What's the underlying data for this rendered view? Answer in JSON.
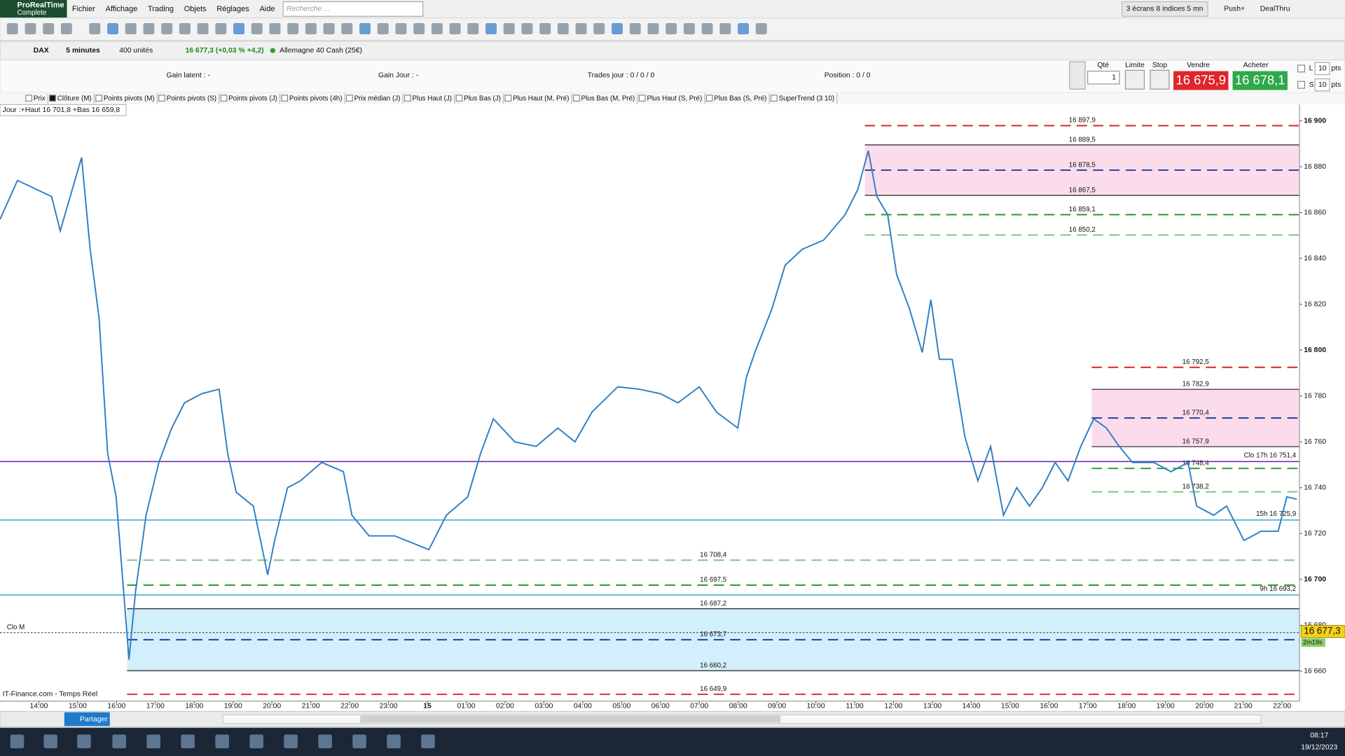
{
  "app": {
    "brand": "ProRealTime",
    "edition": "Complete",
    "menus": [
      "Fichier",
      "Affichage",
      "Trading",
      "Objets",
      "Réglages",
      "Aide"
    ],
    "search": "Recherche ...",
    "screens": "3 écrans 8 indices 5 mn",
    "push": "Push+",
    "dealthru": "DealThru"
  },
  "instrument": {
    "symbol": "DAX",
    "timeframe": "5 minutes",
    "units": "400 unités",
    "quote": "16 677,3 (+0,03 % +4,2)",
    "name": "Allemagne 40 Cash (25€)"
  },
  "trading_panel": {
    "gain_latent": "Gain latent : -",
    "gain_jour": "Gain Jour : -",
    "trades": "Trades jour : 0 / 0 / 0",
    "position": "Position : 0 / 0",
    "qty_label": "Qté",
    "qty": "1",
    "limit": "Limite",
    "stop": "Stop",
    "sell_label": "Vendre",
    "sell_price": "16 675,9",
    "buy_label": "Acheter",
    "buy_price": "16 678,1",
    "l_label": "L",
    "s_label": "S",
    "l_pts": "10",
    "s_pts": "10",
    "pts": "pts"
  },
  "indicators": [
    "Prix",
    "Clôture (M)",
    "Points pivots (M)",
    "Points pivots (S)",
    "Points pivots (J)",
    "Points pivots (4h)",
    "Prix médian (J)",
    "Plus Haut (J)",
    "Plus Bas (J)",
    "Plus Haut (M, Pré)",
    "Plus Bas (M, Pré)",
    "Plus Haut (S, Pré)",
    "Plus Bas (S, Pré)",
    "SuperTrend (3 10)"
  ],
  "day_info": "Jour :+Haut 16 701,8 +Bas 16 659,8",
  "chart_data": {
    "type": "line",
    "xlim": [
      -1,
      32.45
    ],
    "ylim": [
      16645,
      16905
    ],
    "xticks": [
      {
        "value": 0,
        "label": "14:00"
      },
      {
        "value": 1,
        "label": "15:00"
      },
      {
        "value": 2,
        "label": "16:00"
      },
      {
        "value": 3,
        "label": "17:00"
      },
      {
        "value": 4,
        "label": "18:00"
      },
      {
        "value": 5,
        "label": "19:00"
      },
      {
        "value": 6,
        "label": "20:00"
      },
      {
        "value": 7,
        "label": "21:00"
      },
      {
        "value": 8,
        "label": "22:00"
      },
      {
        "value": 9,
        "label": "23:00"
      },
      {
        "value": 10,
        "label": "15"
      },
      {
        "value": 11,
        "label": "01:00"
      },
      {
        "value": 12,
        "label": "02:00"
      },
      {
        "value": 13,
        "label": "03:00"
      },
      {
        "value": 14,
        "label": "04:00"
      },
      {
        "value": 15,
        "label": "05:00"
      },
      {
        "value": 16,
        "label": "06:00"
      },
      {
        "value": 17,
        "label": "07:00"
      },
      {
        "value": 18,
        "label": "08:00"
      },
      {
        "value": 19,
        "label": "09:00"
      },
      {
        "value": 20,
        "label": "10:00"
      },
      {
        "value": 21,
        "label": "11:00"
      },
      {
        "value": 22,
        "label": "12:00"
      },
      {
        "value": 23,
        "label": "13:00"
      },
      {
        "value": 24,
        "label": "14:00"
      },
      {
        "value": 25,
        "label": "15:00"
      },
      {
        "value": 26,
        "label": "16:00"
      },
      {
        "value": 27,
        "label": "17:00"
      },
      {
        "value": 28,
        "label": "18:00"
      },
      {
        "value": 29,
        "label": "19:00"
      },
      {
        "value": 30,
        "label": "20:00"
      },
      {
        "value": 31,
        "label": "21:00"
      },
      {
        "value": 32,
        "label": "22:00"
      }
    ],
    "yticks": [
      {
        "value": 16660,
        "label": "16 660"
      },
      {
        "value": 16680,
        "label": "16 680"
      },
      {
        "value": 16700,
        "label": "16 700"
      },
      {
        "value": 16720,
        "label": "16 720"
      },
      {
        "value": 16740,
        "label": "16 740"
      },
      {
        "value": 16760,
        "label": "16 760"
      },
      {
        "value": 16780,
        "label": "16 780"
      },
      {
        "value": 16800,
        "label": "16 800"
      },
      {
        "value": 16820,
        "label": "16 820"
      },
      {
        "value": 16840,
        "label": "16 840"
      },
      {
        "value": 16860,
        "label": "16 860"
      },
      {
        "value": 16880,
        "label": "16 880"
      },
      {
        "value": 16900,
        "label": "16 900"
      }
    ],
    "series": [
      {
        "name": "DAX",
        "color": "#2f7fc4",
        "x": [
          -1,
          -0.55,
          0.33,
          0.55,
          1.1,
          1.32,
          1.55,
          1.77,
          1.99,
          2.32,
          2.49,
          2.76,
          3.09,
          3.42,
          3.75,
          4.19,
          4.64,
          4.86,
          5.08,
          5.52,
          5.89,
          6.07,
          6.4,
          6.73,
          7.28,
          7.84,
          8.06,
          8.5,
          9.16,
          10.04,
          10.49,
          11.04,
          11.37,
          11.7,
          12.25,
          12.8,
          13.36,
          13.8,
          14.24,
          14.9,
          15.45,
          16,
          16.45,
          17,
          17.44,
          17.99,
          18.21,
          18.43,
          18.87,
          19.21,
          19.65,
          20.2,
          20.75,
          21.08,
          21.35,
          21.57,
          21.85,
          22.08,
          22.41,
          22.74,
          22.96,
          23.18,
          23.51,
          23.84,
          24.17,
          24.5,
          24.83,
          25.17,
          25.5,
          25.83,
          26.16,
          26.49,
          26.82,
          27.15,
          27.48,
          27.81,
          28.15,
          28.7,
          29.14,
          29.58,
          29.8,
          30.24,
          30.57,
          31.02,
          31.46,
          31.9,
          32.12,
          32.38
        ],
        "values": [
          16857,
          16874,
          16867,
          16852,
          16884,
          16844,
          16814,
          16755,
          16736,
          16665,
          16695,
          16728,
          16751,
          16766,
          16777,
          16781,
          16783,
          16755,
          16738,
          16732,
          16702,
          16717,
          16740,
          16743,
          16751,
          16747,
          16728,
          16719,
          16719,
          16713,
          16728,
          16736,
          16755,
          16770,
          16760,
          16758,
          16766,
          16760,
          16773,
          16784,
          16783,
          16781,
          16777,
          16784,
          16773,
          16766,
          16788,
          16799,
          16818,
          16837,
          16844,
          16848,
          16859,
          16870,
          16887,
          16867,
          16859,
          16833,
          16818,
          16799,
          16822,
          16796,
          16796,
          16762,
          16743,
          16758,
          16728,
          16740,
          16732,
          16740,
          16751,
          16743,
          16758,
          16770,
          16766,
          16758,
          16751,
          16751,
          16747,
          16751,
          16732,
          16728,
          16732,
          16717,
          16721,
          16721,
          16736,
          16735
        ]
      }
    ],
    "level_groups": [
      {
        "start": 2.27,
        "zone_color": "#d3effb",
        "levels": [
          {
            "value": 16708.4,
            "label": "16 708,4",
            "color": "#7cc87f",
            "line": "dash"
          },
          {
            "value": 16697.5,
            "label": "16 697,5",
            "color": "#1e9e2a",
            "line": "dash"
          },
          {
            "value": 16687.2,
            "label": "16 687,2",
            "color": "#222222",
            "line": "solid"
          },
          {
            "value": 16673.7,
            "label": "16 673,7",
            "color": "#1f3fa0",
            "line": "dash"
          },
          {
            "value": 16660.2,
            "label": "16 660,2",
            "color": "#222222",
            "line": "solid"
          },
          {
            "value": 16649.9,
            "label": "16 649,9",
            "color": "#d9232a",
            "line": "dash"
          }
        ]
      },
      {
        "start": 21.26,
        "zone_color": "#fbdcec",
        "levels": [
          {
            "value": 16897.9,
            "label": "16 897,9",
            "color": "#d9232a",
            "line": "dash"
          },
          {
            "value": 16889.5,
            "label": "16 889,5",
            "color": "#222222",
            "line": "solid"
          },
          {
            "value": 16878.5,
            "label": "16 878,5",
            "color": "#1f3fa0",
            "line": "dash"
          },
          {
            "value": 16867.5,
            "label": "16 867,5",
            "color": "#222222",
            "line": "solid"
          },
          {
            "value": 16859.1,
            "label": "16 859,1",
            "color": "#1e9e2a",
            "line": "dash"
          },
          {
            "value": 16850.2,
            "label": "16 850,2",
            "color": "#7cc87f",
            "line": "dash"
          }
        ]
      },
      {
        "start": 27.1,
        "zone_color": "#fbdcec",
        "levels": [
          {
            "value": 16792.5,
            "label": "16 792,5",
            "color": "#d9232a",
            "line": "dash"
          },
          {
            "value": 16782.9,
            "label": "16 782,9",
            "color": "#222222",
            "line": "solid"
          },
          {
            "value": 16770.4,
            "label": "16 770,4",
            "color": "#1f3fa0",
            "line": "dash"
          },
          {
            "value": 16757.9,
            "label": "16 757,9",
            "color": "#222222",
            "line": "solid"
          },
          {
            "value": 16748.4,
            "label": "16 748,4",
            "color": "#1e9e2a",
            "line": "dash"
          },
          {
            "value": 16738.2,
            "label": "16 738,2",
            "color": "#7cc87f",
            "line": "dash"
          }
        ]
      }
    ],
    "reference_lines": [
      {
        "value": 16751.4,
        "label": "Clo 17h 16 751,4",
        "color": "#6a1fa8",
        "side": "right",
        "dotted": false
      },
      {
        "value": 16725.9,
        "label": "15h 16 725,9",
        "color": "#39a6d8",
        "side": "right",
        "dotted": false
      },
      {
        "value": 16693.2,
        "label": "9h 16 693,2",
        "color": "#39a6d8",
        "side": "right",
        "dotted": false
      },
      {
        "value": 16676.8,
        "label": "Clo M",
        "color": "#222222",
        "side": "left",
        "dotted": true
      }
    ],
    "last_price": {
      "value": 16677.3,
      "label": "16 677,3",
      "countdown": "2m19s"
    },
    "grid": false
  },
  "footer": {
    "source": "IT-Finance.com - Temps Réel",
    "share": "Partager"
  },
  "taskbar": {
    "time": "08:17",
    "date": "19/12/2023"
  }
}
